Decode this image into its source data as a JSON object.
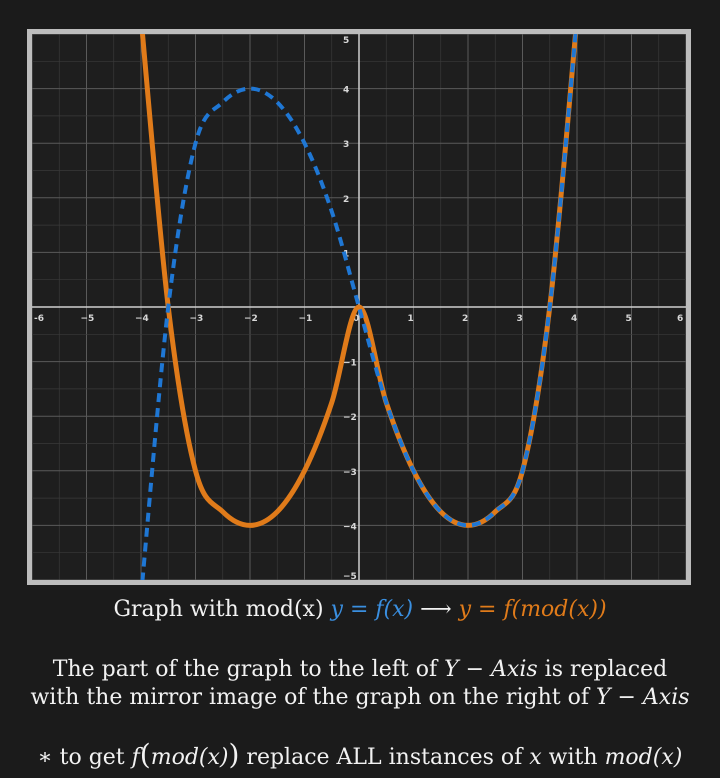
{
  "chart_data": {
    "type": "line",
    "xlim": [
      -6,
      6
    ],
    "ylim": [
      -5,
      5
    ],
    "x_ticks": [
      -6,
      -5,
      -4,
      -3,
      -2,
      -1,
      0,
      1,
      2,
      3,
      4,
      5,
      6
    ],
    "y_ticks": [
      -5,
      -4,
      -3,
      -2,
      -1,
      1,
      2,
      3,
      4,
      5
    ],
    "x_tick_labels": [
      "-6",
      "−5",
      "−4",
      "−3",
      "−2",
      "−1",
      "0",
      "1",
      "2",
      "3",
      "4",
      "5",
      "6"
    ],
    "y_tick_labels": [
      "−5",
      "−4",
      "−3",
      "−2",
      "−1",
      "1",
      "2",
      "3",
      "4",
      "5"
    ],
    "grid": true,
    "series": [
      {
        "name": "y = f(x)",
        "style": "dashed",
        "color": "#1f77d4",
        "x": [
          -4,
          -3.5,
          -3,
          -2.5,
          -2,
          -1.5,
          -1,
          -0.5,
          0,
          0.5,
          1,
          1.5,
          2,
          2.5,
          3,
          3.5,
          4
        ],
        "y": [
          -5.3,
          0,
          3,
          3.75,
          4,
          3.75,
          3,
          1.75,
          0,
          -1.75,
          -3,
          -3.75,
          -4,
          -3.75,
          -3,
          0,
          5.3
        ]
      },
      {
        "name": "y = f(mod(x))",
        "style": "solid",
        "color": "#e07b1a",
        "x": [
          -4,
          -3.5,
          -3,
          -2.5,
          -2,
          -1.5,
          -1,
          -0.5,
          0,
          0.5,
          1,
          1.5,
          2,
          2.5,
          3,
          3.5,
          4
        ],
        "y": [
          5.3,
          0,
          -3,
          -3.75,
          -4,
          -3.75,
          -3,
          -1.75,
          0,
          -1.75,
          -3,
          -3.75,
          -4,
          -3.75,
          -3,
          0,
          5.3
        ]
      }
    ]
  },
  "caption": {
    "line1_prefix": "Graph with mod(x) ",
    "f_x": "y = f(x)",
    "arrow": " ⟶ ",
    "f_mod_x": "y = f(mod(x))",
    "line2_a": "The part of the graph to the left of ",
    "y_axis_1": "Y − Axis",
    "line2_b": " is replaced",
    "line3_a": "with the mirror image of the graph on the right of ",
    "y_axis_2": "Y − Axis",
    "line4_a": "∗ to get ",
    "line4_f": "f",
    "line4_paren_open": "(",
    "line4_mod": "mod(x)",
    "line4_paren_close": ")",
    "line4_b": " replace ALL instances of ",
    "line4_x": "x",
    "line4_c": " with ",
    "line4_modx": "mod(x)"
  }
}
